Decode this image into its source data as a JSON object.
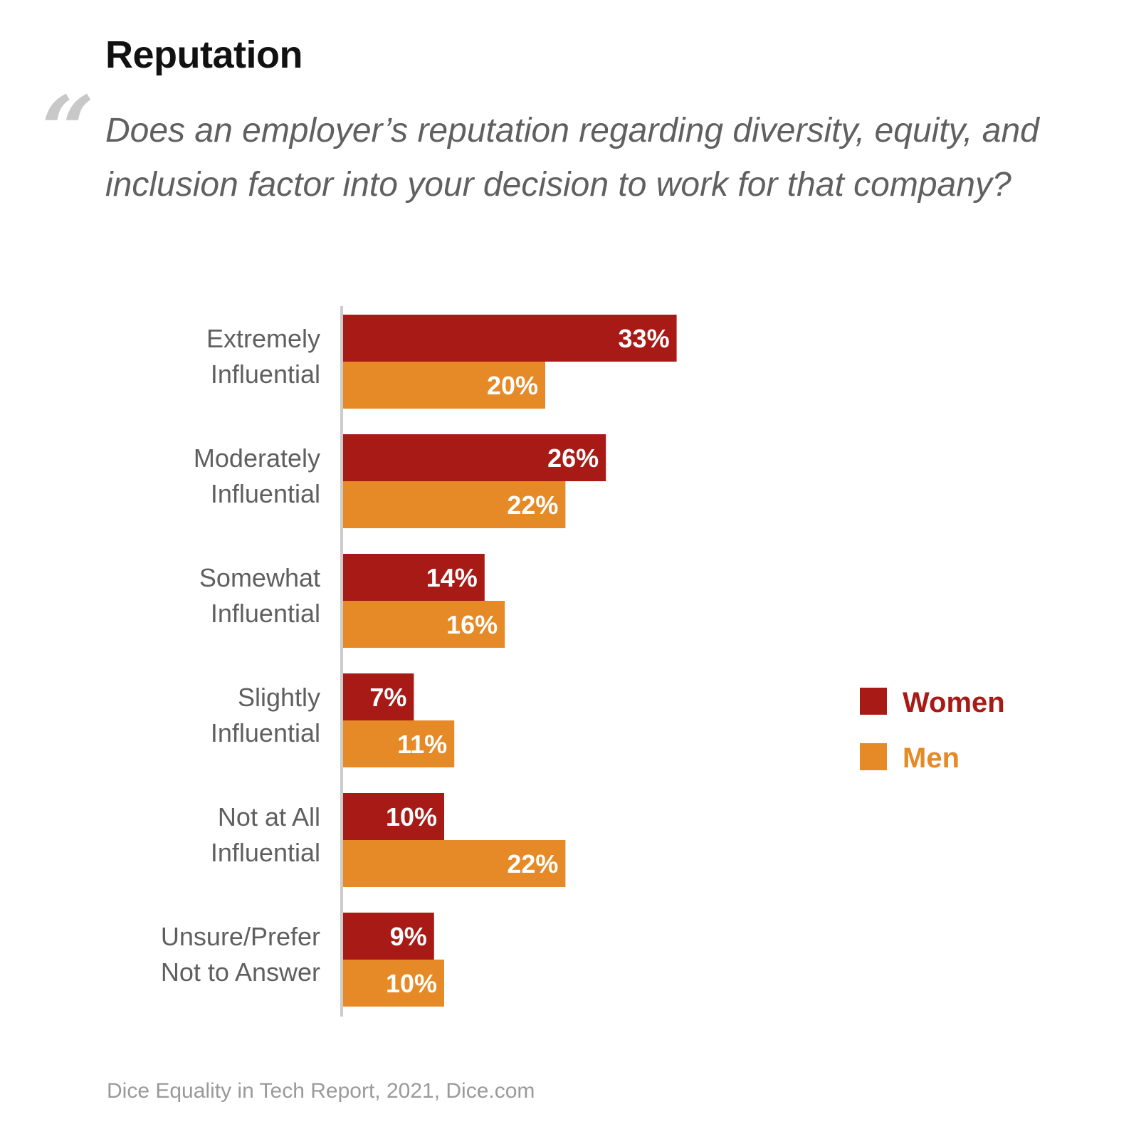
{
  "header": {
    "title": "Reputation",
    "quote_mark": "“",
    "question": "Does an employer’s reputation regarding diversity, equity, and inclusion factor into your decision to work for that company?"
  },
  "chart_data": {
    "type": "bar",
    "orientation": "horizontal",
    "categories": [
      [
        "Extremely",
        "Influential"
      ],
      [
        "Moderately",
        "Influential"
      ],
      [
        "Somewhat",
        "Influential"
      ],
      [
        "Slightly",
        "Influential"
      ],
      [
        "Not at All",
        "Influential"
      ],
      [
        "Unsure/Prefer",
        "Not to Answer"
      ]
    ],
    "series": [
      {
        "name": "Women",
        "color": "#a81a16",
        "values": [
          33,
          26,
          14,
          7,
          10,
          9
        ],
        "labels": [
          "33%",
          "26%",
          "14%",
          "7%",
          "10%",
          "9%"
        ]
      },
      {
        "name": "Men",
        "color": "#e58a26",
        "values": [
          20,
          22,
          16,
          11,
          22,
          10
        ],
        "labels": [
          "20%",
          "22%",
          "16%",
          "11%",
          "22%",
          "10%"
        ]
      }
    ],
    "value_unit": "%",
    "xlim": [
      0,
      33
    ],
    "grid": false,
    "legend_position": "right",
    "axis_color": "#cccccc"
  },
  "footer": {
    "source": "Dice Equality in Tech Report, 2021, Dice.com"
  }
}
